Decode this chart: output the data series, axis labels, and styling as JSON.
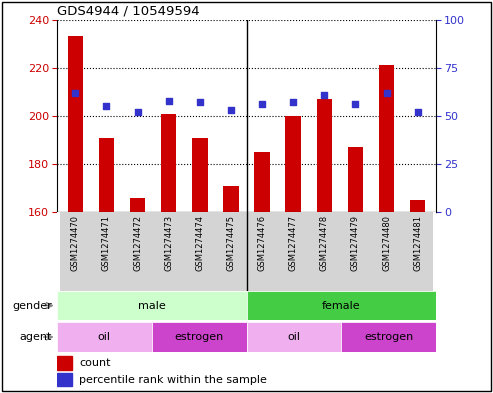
{
  "title": "GDS4944 / 10549594",
  "samples": [
    "GSM1274470",
    "GSM1274471",
    "GSM1274472",
    "GSM1274473",
    "GSM1274474",
    "GSM1274475",
    "GSM1274476",
    "GSM1274477",
    "GSM1274478",
    "GSM1274479",
    "GSM1274480",
    "GSM1274481"
  ],
  "counts": [
    233,
    191,
    166,
    201,
    191,
    171,
    185,
    200,
    207,
    187,
    221,
    165
  ],
  "percentiles": [
    62,
    55,
    52,
    58,
    57,
    53,
    56,
    57,
    61,
    56,
    62,
    52
  ],
  "ylim_left": [
    160,
    240
  ],
  "ylim_right": [
    0,
    100
  ],
  "yticks_left": [
    160,
    180,
    200,
    220,
    240
  ],
  "yticks_right": [
    0,
    25,
    50,
    75,
    100
  ],
  "bar_color": "#cc0000",
  "dot_color": "#3333cc",
  "bar_width": 0.5,
  "gender_groups": [
    {
      "label": "male",
      "start": 0,
      "end": 6,
      "color": "#ccffcc"
    },
    {
      "label": "female",
      "start": 6,
      "end": 12,
      "color": "#44cc44"
    }
  ],
  "agent_groups": [
    {
      "label": "oil",
      "start": 0,
      "end": 3,
      "color": "#f0b0f0"
    },
    {
      "label": "estrogen",
      "start": 3,
      "end": 6,
      "color": "#cc44cc"
    },
    {
      "label": "oil",
      "start": 6,
      "end": 9,
      "color": "#f0b0f0"
    },
    {
      "label": "estrogen",
      "start": 9,
      "end": 12,
      "color": "#cc44cc"
    }
  ],
  "gender_label": "gender",
  "agent_label": "agent",
  "legend_count_label": "count",
  "legend_pct_label": "percentile rank within the sample",
  "tick_label_color_left": "#cc0000",
  "tick_label_color_right": "#3333cc"
}
